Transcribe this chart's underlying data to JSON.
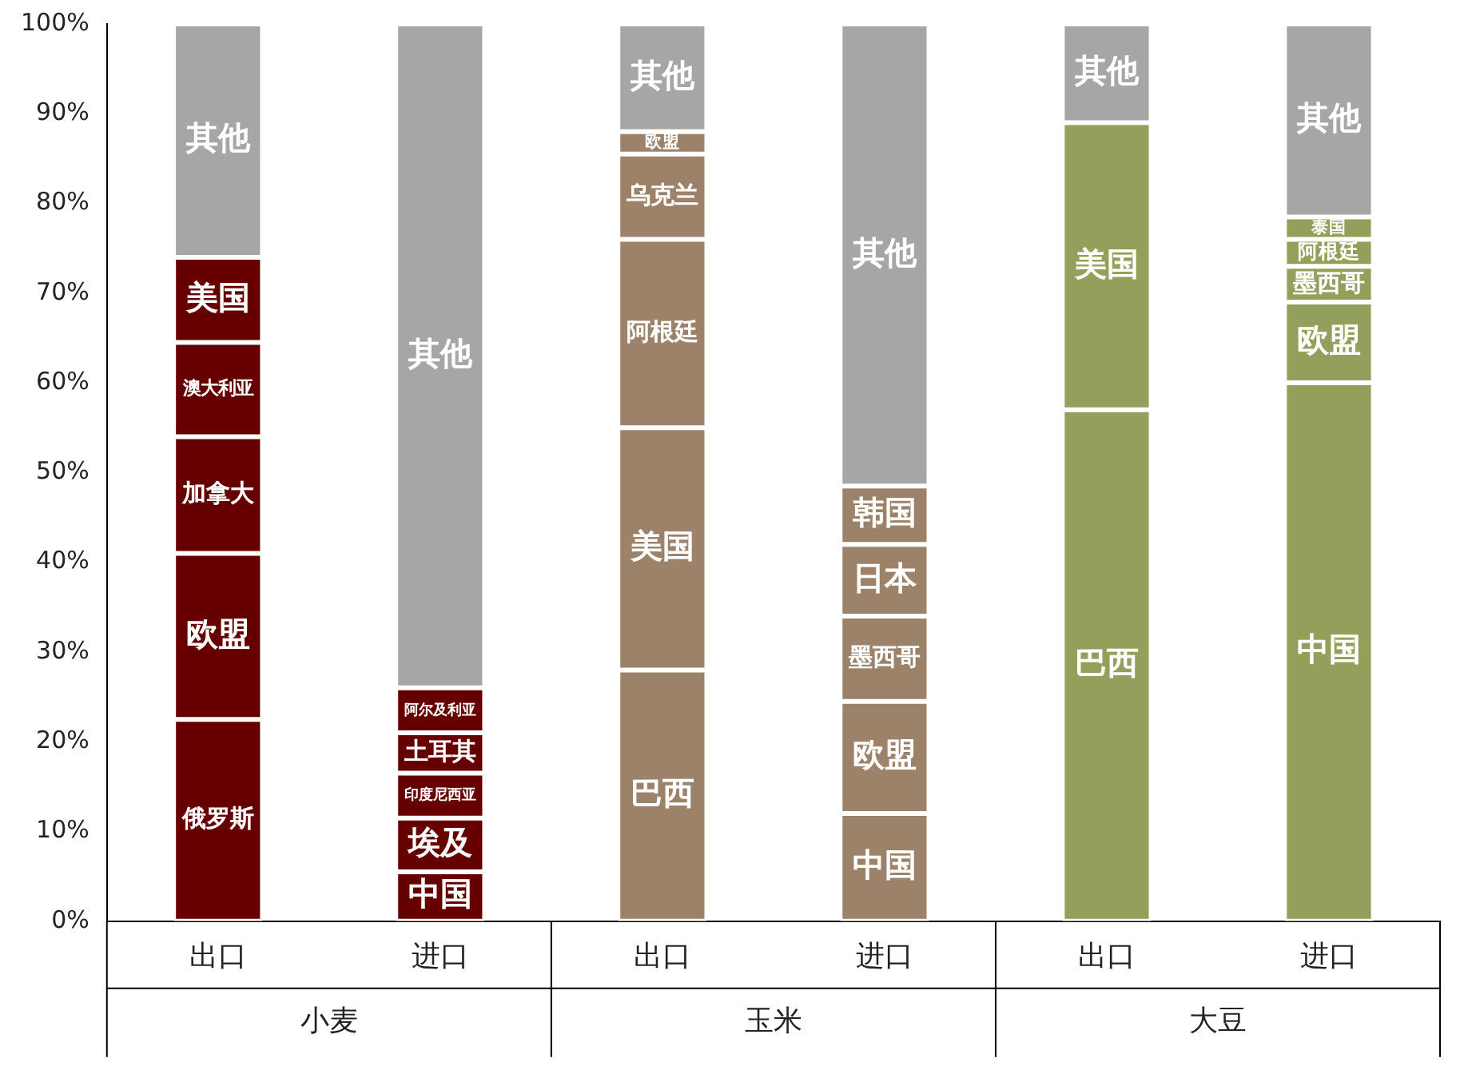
{
  "chart_data": {
    "type": "bar",
    "stacked": true,
    "legend": false,
    "grid": false,
    "categories": [
      "出口",
      "进口",
      "出口",
      "进口",
      "出口",
      "进口"
    ],
    "annotations": [
      "小麦",
      "玉米",
      "大豆"
    ],
    "ylim": [
      0,
      100
    ],
    "yticks": [
      {
        "value": 0,
        "label": "0%"
      },
      {
        "value": 10,
        "label": "10%"
      },
      {
        "value": 20,
        "label": "20%"
      },
      {
        "value": 30,
        "label": "30%"
      },
      {
        "value": 40,
        "label": "40%"
      },
      {
        "value": 50,
        "label": "50%"
      },
      {
        "value": 60,
        "label": "60%"
      },
      {
        "value": 70,
        "label": "70%"
      },
      {
        "value": 80,
        "label": "80%"
      },
      {
        "value": 90,
        "label": "90%"
      },
      {
        "value": 100,
        "label": "100%"
      }
    ],
    "series": [
      {
        "values": [
          22.5,
          5.5,
          28,
          12,
          57,
          60
        ],
        "colors": [
          "#660000",
          "#660000",
          "#9b8269",
          "#9b8269",
          "#93a05c",
          "#93a05c"
        ],
        "value_labels": [
          "俄罗斯",
          "中国",
          "巴西",
          "中国",
          "巴西",
          "中国"
        ]
      },
      {
        "values": [
          18.5,
          6,
          27,
          12.5,
          32,
          9
        ],
        "colors": [
          "#660000",
          "#660000",
          "#9b8269",
          "#9b8269",
          "#93a05c",
          "#93a05c"
        ],
        "value_labels": [
          "欧盟",
          "埃及",
          "美国",
          "欧盟",
          "美国",
          "欧盟"
        ]
      },
      {
        "values": [
          13,
          5,
          21,
          9.5,
          null,
          4
        ],
        "colors": [
          "#660000",
          "#660000",
          "#9b8269",
          "#9b8269",
          "#93a05c",
          "#93a05c"
        ],
        "value_labels": [
          "加拿大",
          "印度尼西亚",
          "阿根廷",
          "墨西哥",
          null,
          "墨西哥"
        ]
      },
      {
        "values": [
          10.5,
          4.5,
          9.5,
          8,
          null,
          3
        ],
        "colors": [
          "#660000",
          "#660000",
          "#9b8269",
          "#9b8269",
          "#93a05c",
          "#93a05c"
        ],
        "value_labels": [
          "澳大利亚",
          "土耳其",
          "乌克兰",
          "日本",
          null,
          "阿根廷"
        ]
      },
      {
        "values": [
          9.5,
          5,
          2.5,
          6.5,
          null,
          2.5
        ],
        "colors": [
          "#660000",
          "#660000",
          "#9b8269",
          "#9b8269",
          "#93a05c",
          "#93a05c"
        ],
        "value_labels": [
          "美国",
          "阿尔及利亚",
          "欧盟",
          "韩国",
          null,
          "泰国"
        ]
      },
      {
        "values": [
          26,
          74,
          12,
          51.5,
          11,
          21.5
        ],
        "colors": [
          "#a6a6a6",
          "#a6a6a6",
          "#a6a6a6",
          "#a6a6a6",
          "#a6a6a6",
          "#a6a6a6"
        ],
        "value_labels": [
          "其他",
          "其他",
          "其他",
          "其他",
          "其他",
          "其他"
        ]
      }
    ]
  }
}
